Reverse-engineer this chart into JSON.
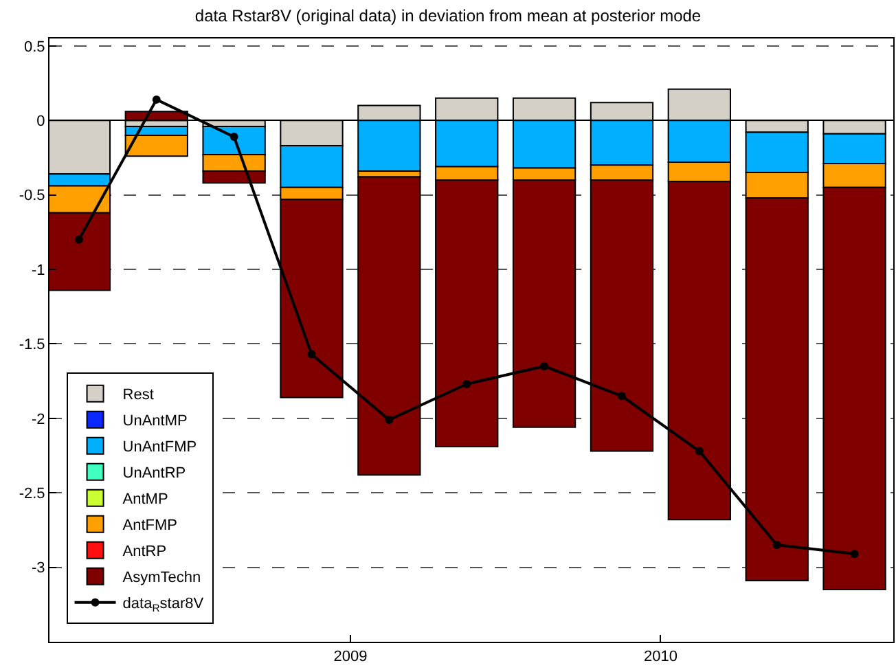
{
  "chart_data": {
    "type": "bar",
    "title": "data Rstar8V (original data) in deviation from mean at posterior mode",
    "stacked": true,
    "x": [
      2008.125,
      2008.375,
      2008.625,
      2008.875,
      2009.125,
      2009.375,
      2009.625,
      2009.875,
      2010.125,
      2010.375,
      2010.625
    ],
    "xlim": [
      2008.03,
      2010.75
    ],
    "xticks": [
      2009,
      2010
    ],
    "ylim": [
      -3.5,
      0.55
    ],
    "yticks": [
      -3,
      -2.5,
      -2,
      -1.5,
      -1,
      -0.5,
      0,
      0.5
    ],
    "grid": "y",
    "legend": "bottom left",
    "series": [
      {
        "name": "Rest",
        "color": "#d4d0c8",
        "values": [
          -0.36,
          -0.04,
          -0.04,
          -0.17,
          0.1,
          0.15,
          0.15,
          0.12,
          0.21,
          -0.08,
          -0.09
        ]
      },
      {
        "name": "UnAntMP",
        "color": "#0a28ff",
        "values": [
          null,
          null,
          null,
          null,
          null,
          null,
          null,
          null,
          null,
          null,
          null
        ]
      },
      {
        "name": "UnAntFMP",
        "color": "#00b0ff",
        "values": [
          -0.08,
          -0.06,
          -0.19,
          -0.28,
          -0.34,
          -0.31,
          -0.32,
          -0.3,
          -0.28,
          -0.27,
          -0.2
        ]
      },
      {
        "name": "UnAntRP",
        "color": "#40ffc0",
        "values": [
          null,
          null,
          null,
          null,
          null,
          null,
          null,
          null,
          null,
          null,
          null
        ]
      },
      {
        "name": "AntMP",
        "color": "#ccff33",
        "values": [
          null,
          null,
          null,
          null,
          null,
          null,
          null,
          null,
          null,
          null,
          null
        ]
      },
      {
        "name": "AntFMP",
        "color": "#ffa000",
        "values": [
          -0.18,
          -0.14,
          -0.11,
          -0.08,
          -0.04,
          -0.09,
          -0.08,
          -0.1,
          -0.13,
          -0.17,
          -0.16
        ]
      },
      {
        "name": "AntRP",
        "color": "#ff1010",
        "values": [
          null,
          null,
          null,
          null,
          null,
          null,
          null,
          null,
          null,
          null,
          null
        ]
      },
      {
        "name": "AsymTechn",
        "color": "#800000",
        "values": [
          -0.52,
          0.06,
          -0.08,
          -1.33,
          -2.0,
          -1.79,
          -1.66,
          -1.82,
          -2.27,
          -2.57,
          -2.7
        ]
      },
      {
        "name": "data$_{R}$star8V",
        "type": "line",
        "color": "#000000",
        "marker": "circle",
        "values": [
          -0.8,
          0.14,
          -0.11,
          -1.57,
          -2.01,
          -1.77,
          -1.65,
          -1.85,
          -2.22,
          -2.85,
          -2.91
        ]
      }
    ]
  }
}
